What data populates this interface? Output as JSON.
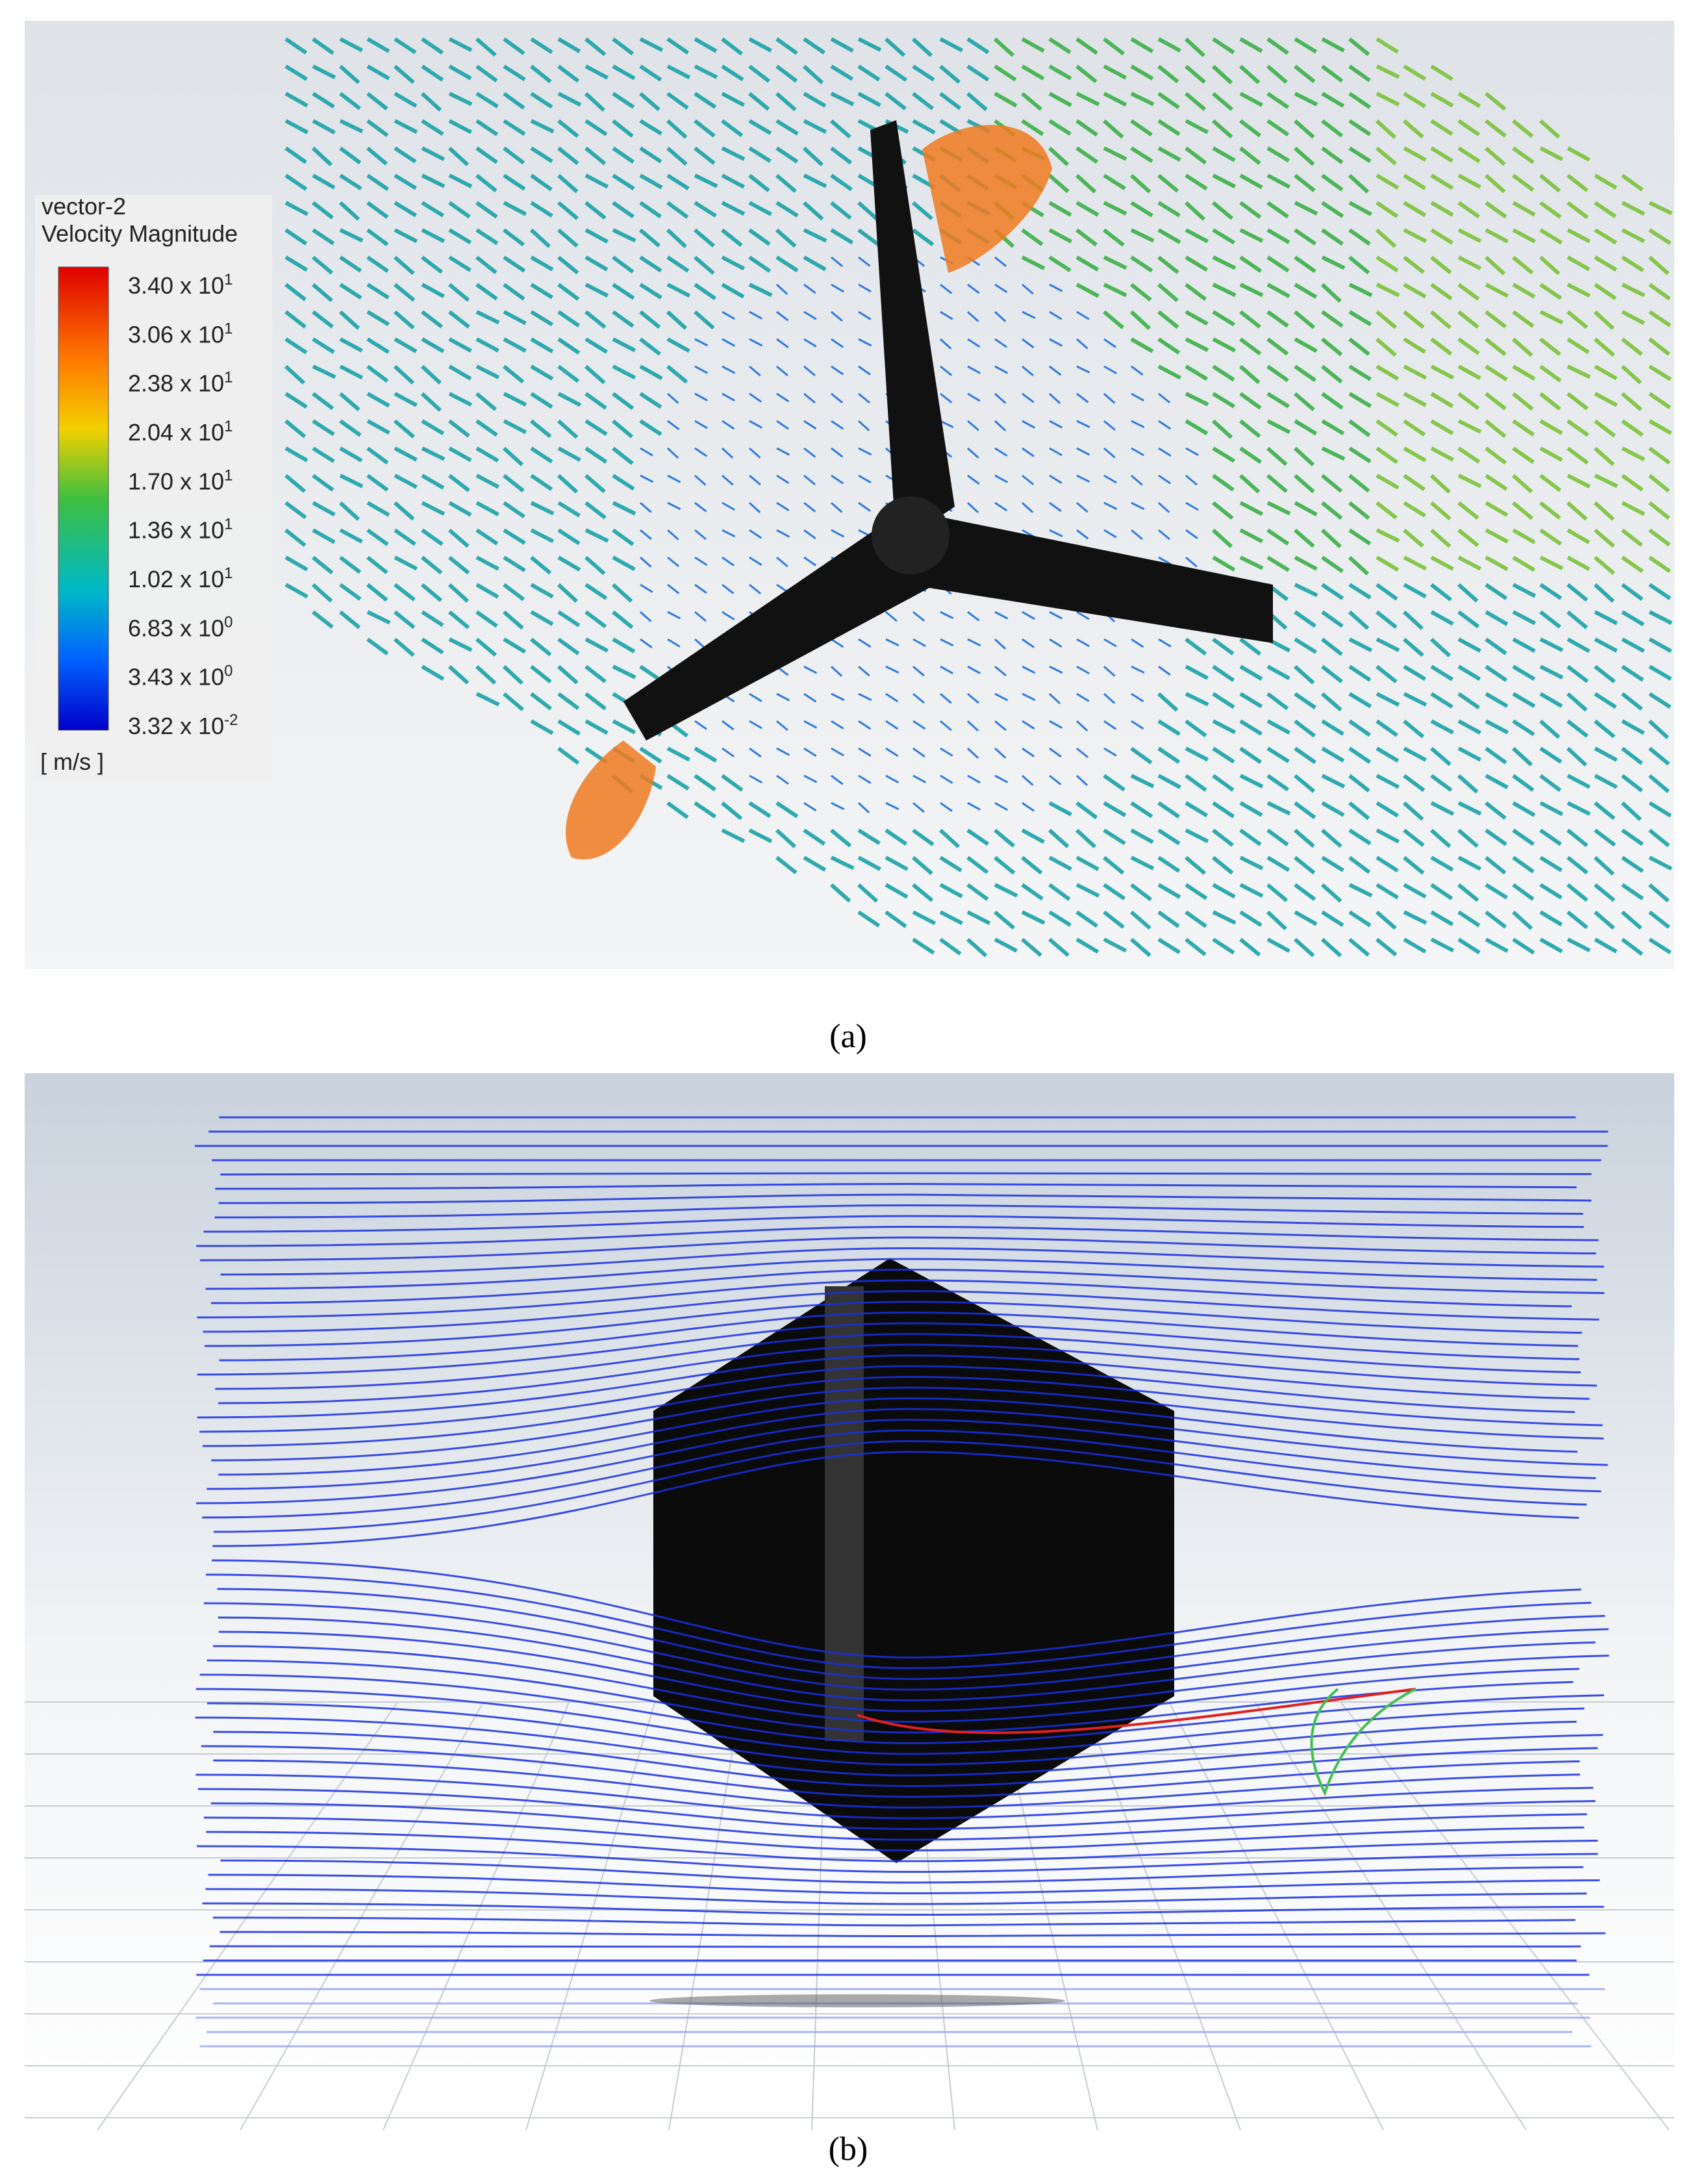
{
  "panel_a": {
    "legend": {
      "title": "vector-2",
      "subtitle": "Velocity Magnitude",
      "labels": [
        {
          "text": "3.40 x 10",
          "exp": "1"
        },
        {
          "text": "3.06 x 10",
          "exp": "1"
        },
        {
          "text": "2.38 x 10",
          "exp": "1"
        },
        {
          "text": "2.04 x 10",
          "exp": "1"
        },
        {
          "text": "1.70 x 10",
          "exp": "1"
        },
        {
          "text": "1.36 x 10",
          "exp": "1"
        },
        {
          "text": "1.02 x 10",
          "exp": "1"
        },
        {
          "text": "6.83 x 10",
          "exp": "0"
        },
        {
          "text": "3.43 x 10",
          "exp": "0"
        },
        {
          "text": "3.32 x 10",
          "exp": "-2"
        }
      ],
      "unit": "[ m/s ]"
    },
    "caption": "(a)"
  },
  "panel_b": {
    "caption": "(b)"
  }
}
